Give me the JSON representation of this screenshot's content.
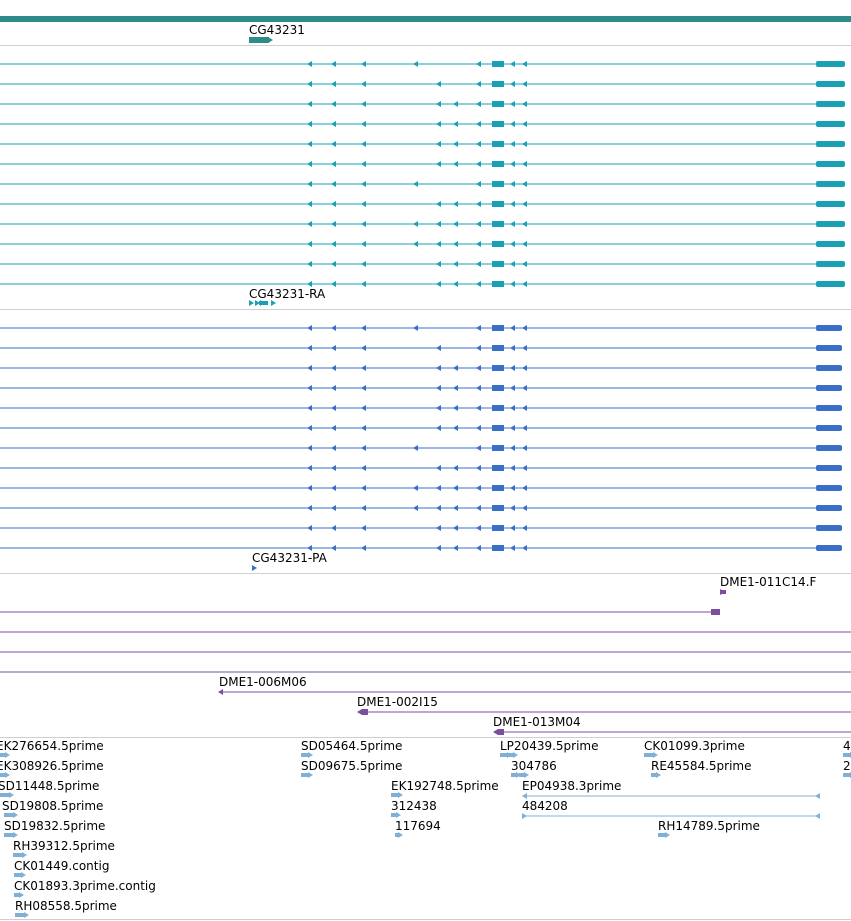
{
  "colors": {
    "gene": "#2e8b8b",
    "transcript": "#1aa0b5",
    "protein": "#3a6fc8",
    "clone": "#7a4fa0",
    "est": "#7fb0d8",
    "separator": "#cfcfcf"
  },
  "tracks": {
    "gene": {
      "label": "CG43231"
    },
    "transcripts": {
      "label": "CG43231-RA",
      "row_count": 12
    },
    "proteins": {
      "label": "CG43231-PA",
      "row_count": 12
    },
    "clones": {
      "labels": [
        "DME1-011C14.F",
        "DME1-006M06",
        "DME1-002I15",
        "DME1-013M04"
      ]
    },
    "ests": {
      "labels": [
        "EK276654.5prime",
        "EK308926.5prime",
        "SD11448.5prime",
        "SD19808.5prime",
        "SD19832.5prime",
        "RH39312.5prime",
        "CK01449.contig",
        "CK01893.3prime.contig",
        "RH08558.5prime",
        "SD05464.5prime",
        "SD09675.5prime",
        "EK192748.5prime",
        "312438",
        "117694",
        "LP20439.5prime",
        "304786",
        "EP04938.3prime",
        "484208",
        "CK01099.3prime",
        "RE45584.5prime",
        "RH14789.5prime",
        "4",
        "2"
      ]
    }
  }
}
